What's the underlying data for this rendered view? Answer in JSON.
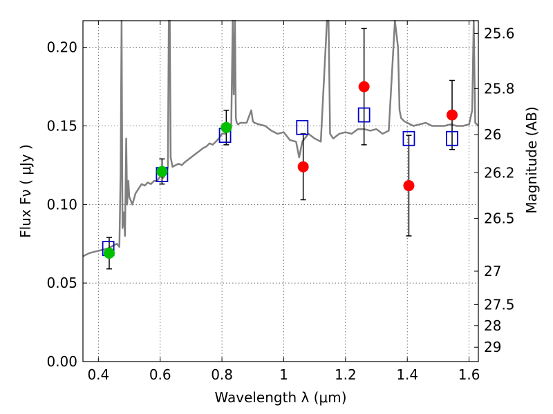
{
  "chart_data": {
    "type": "scatter",
    "xlabel": "Wavelength  λ (μm)",
    "ylabel_left": "Flux  Fν  ( μJy )",
    "ylabel_right": "Magnitude (AB)",
    "xlim": [
      0.35,
      1.63
    ],
    "ylim": [
      0.0,
      0.217
    ],
    "grid": true,
    "x_ticks": [
      {
        "value": 0.4,
        "label": "0.4"
      },
      {
        "value": 0.6,
        "label": "0.6"
      },
      {
        "value": 0.8,
        "label": "0.8"
      },
      {
        "value": 1.0,
        "label": "1"
      },
      {
        "value": 1.2,
        "label": "1.2"
      },
      {
        "value": 1.4,
        "label": "1.4"
      },
      {
        "value": 1.6,
        "label": "1.6"
      }
    ],
    "y_ticks": [
      {
        "value": 0.0,
        "label": "0.00"
      },
      {
        "value": 0.05,
        "label": "0.05"
      },
      {
        "value": 0.1,
        "label": "0.10"
      },
      {
        "value": 0.15,
        "label": "0.15"
      },
      {
        "value": 0.2,
        "label": "0.20"
      }
    ],
    "right_ticks": [
      {
        "mag": 25.6,
        "label": "25.6"
      },
      {
        "mag": 25.8,
        "label": "25.8"
      },
      {
        "mag": 26.0,
        "label": "26"
      },
      {
        "mag": 26.2,
        "label": "26.2"
      },
      {
        "mag": 26.5,
        "label": "26.5"
      },
      {
        "mag": 27.0,
        "label": "27"
      },
      {
        "mag": 27.5,
        "label": "27.5"
      },
      {
        "mag": 28.0,
        "label": "28"
      },
      {
        "mag": 29.0,
        "label": "29"
      }
    ],
    "colors": {
      "model": "#808080",
      "green": "#00c000",
      "red": "#ff0000",
      "squares": "#0000cc",
      "errorbar": "#000000"
    },
    "model_spectrum": {
      "x": [
        0.35,
        0.37,
        0.39,
        0.41,
        0.43,
        0.45,
        0.46,
        0.468,
        0.472,
        0.475,
        0.478,
        0.482,
        0.486,
        0.49,
        0.493,
        0.497,
        0.5,
        0.51,
        0.52,
        0.53,
        0.54,
        0.55,
        0.56,
        0.57,
        0.58,
        0.59,
        0.6,
        0.61,
        0.62,
        0.625,
        0.628,
        0.631,
        0.634,
        0.64,
        0.65,
        0.66,
        0.67,
        0.68,
        0.7,
        0.72,
        0.74,
        0.75,
        0.76,
        0.77,
        0.78,
        0.79,
        0.8,
        0.81,
        0.82,
        0.83,
        0.835,
        0.838,
        0.842,
        0.845,
        0.848,
        0.852,
        0.86,
        0.88,
        0.895,
        0.9,
        0.905,
        0.92,
        0.94,
        0.96,
        0.98,
        1.0,
        1.02,
        1.04,
        1.05,
        1.06,
        1.08,
        1.1,
        1.12,
        1.14,
        1.145,
        1.15,
        1.16,
        1.18,
        1.2,
        1.22,
        1.24,
        1.26,
        1.28,
        1.3,
        1.32,
        1.34,
        1.36,
        1.37,
        1.375,
        1.38,
        1.39,
        1.4,
        1.42,
        1.44,
        1.46,
        1.48,
        1.5,
        1.52,
        1.54,
        1.56,
        1.58,
        1.6,
        1.61,
        1.615,
        1.62,
        1.63
      ],
      "y": [
        0.067,
        0.069,
        0.07,
        0.071,
        0.072,
        0.074,
        0.075,
        0.073,
        0.12,
        0.23,
        0.085,
        0.095,
        0.08,
        0.142,
        0.1,
        0.115,
        0.105,
        0.1,
        0.107,
        0.11,
        0.113,
        0.112,
        0.114,
        0.113,
        0.115,
        0.115,
        0.118,
        0.117,
        0.12,
        0.124,
        0.23,
        0.23,
        0.13,
        0.124,
        0.125,
        0.126,
        0.125,
        0.127,
        0.13,
        0.133,
        0.136,
        0.137,
        0.139,
        0.138,
        0.14,
        0.142,
        0.145,
        0.145,
        0.147,
        0.149,
        0.23,
        0.17,
        0.23,
        0.155,
        0.152,
        0.151,
        0.152,
        0.152,
        0.16,
        0.153,
        0.152,
        0.151,
        0.15,
        0.147,
        0.145,
        0.146,
        0.141,
        0.14,
        0.13,
        0.14,
        0.145,
        0.142,
        0.14,
        0.23,
        0.23,
        0.145,
        0.142,
        0.145,
        0.146,
        0.145,
        0.148,
        0.148,
        0.147,
        0.148,
        0.145,
        0.147,
        0.23,
        0.2,
        0.16,
        0.155,
        0.153,
        0.152,
        0.15,
        0.151,
        0.152,
        0.15,
        0.15,
        0.15,
        0.151,
        0.15,
        0.15,
        0.151,
        0.16,
        0.23,
        0.152,
        0.15
      ]
    },
    "green_points": [
      {
        "x": 0.435,
        "y": 0.069,
        "err": 0.01
      },
      {
        "x": 0.606,
        "y": 0.121,
        "err": 0.008
      },
      {
        "x": 0.814,
        "y": 0.149,
        "err": 0.011
      }
    ],
    "red_points": [
      {
        "x": 1.063,
        "y": 0.124,
        "err": 0.021
      },
      {
        "x": 1.26,
        "y": 0.175,
        "err": 0.037
      },
      {
        "x": 1.405,
        "y": 0.112,
        "err": 0.032
      },
      {
        "x": 1.545,
        "y": 0.157,
        "err": 0.022
      }
    ],
    "model_squares": [
      {
        "x": 0.432,
        "y": 0.072
      },
      {
        "x": 0.606,
        "y": 0.119
      },
      {
        "x": 0.81,
        "y": 0.144
      },
      {
        "x": 1.06,
        "y": 0.149
      },
      {
        "x": 1.26,
        "y": 0.157
      },
      {
        "x": 1.405,
        "y": 0.142
      },
      {
        "x": 1.545,
        "y": 0.142
      }
    ]
  }
}
